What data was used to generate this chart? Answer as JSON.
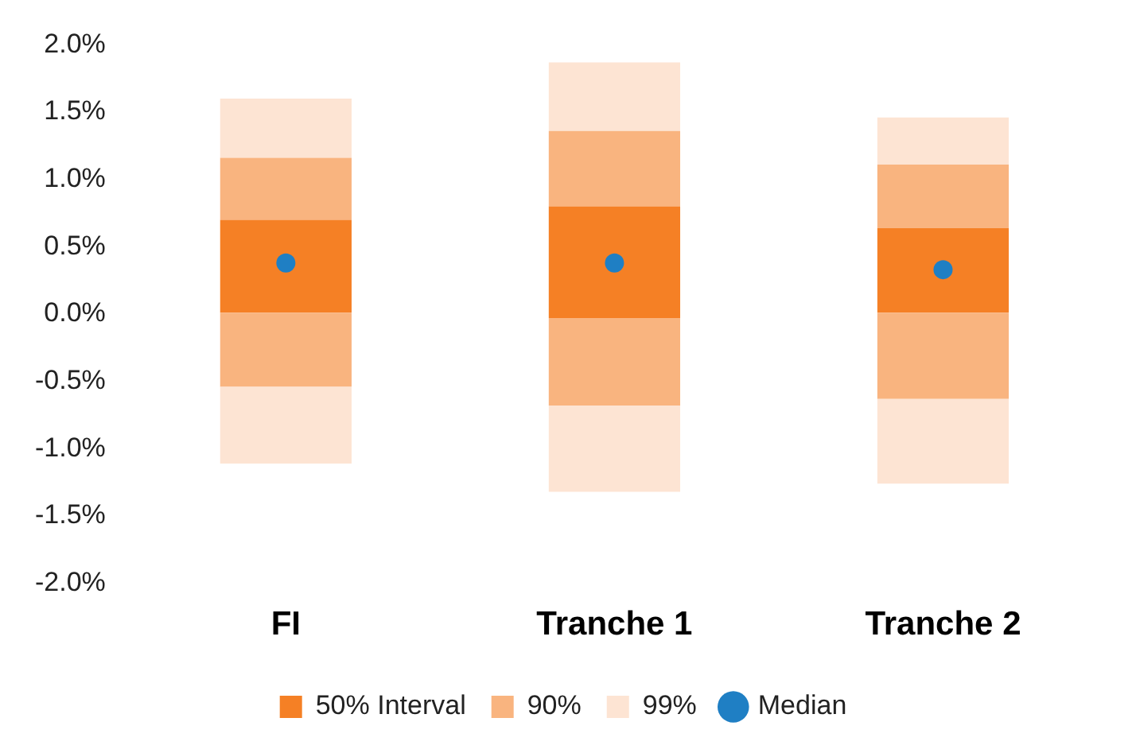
{
  "chart_data": {
    "type": "bar",
    "categories": [
      "FI",
      "Tranche 1",
      "Tranche 2"
    ],
    "series": [
      {
        "color": "#fde4d3",
        "base": [
          -1.11,
          -1.32,
          -1.26
        ],
        "values": [
          0.57,
          0.64,
          0.63
        ]
      },
      {
        "color": "#f9b47f",
        "base": [
          -0.54,
          -0.68,
          -0.63
        ],
        "values": [
          0.55,
          0.65,
          0.64
        ]
      },
      {
        "name": "50% Interval",
        "color": "#f58025",
        "base": [
          0.01,
          -0.03,
          0.01
        ],
        "values": [
          0.69,
          0.83,
          0.63
        ]
      },
      {
        "name": "90%",
        "color": "#f9b47f",
        "base": [
          0.7,
          0.8,
          0.64
        ],
        "values": [
          0.46,
          0.56,
          0.47
        ]
      },
      {
        "name": "99%",
        "color": "#fde4d3",
        "base": [
          1.16,
          1.36,
          1.11
        ],
        "values": [
          0.44,
          0.51,
          0.35
        ]
      },
      {
        "name": "Median",
        "type": "scatter",
        "marker": "circle",
        "color": "#1f7fc4",
        "x": [
          "FI",
          "Tranche 1",
          "Tranche 2"
        ],
        "values": [
          0.38,
          0.38,
          0.33
        ]
      }
    ],
    "ylim": [
      -2.0,
      2.0
    ],
    "yticks": [
      {
        "value": -2.0,
        "label": "-2.0%"
      },
      {
        "value": -1.5,
        "label": "-1.5%"
      },
      {
        "value": -1.0,
        "label": "-1.0%"
      },
      {
        "value": -0.5,
        "label": "-0.5%"
      },
      {
        "value": 0.0,
        "label": "0.0%"
      },
      {
        "value": 0.5,
        "label": "0.5%"
      },
      {
        "value": 1.0,
        "label": "1.0%"
      },
      {
        "value": 1.5,
        "label": "1.5%"
      },
      {
        "value": 2.0,
        "label": "2.0%"
      }
    ],
    "grid": false,
    "legend": "bottom"
  }
}
